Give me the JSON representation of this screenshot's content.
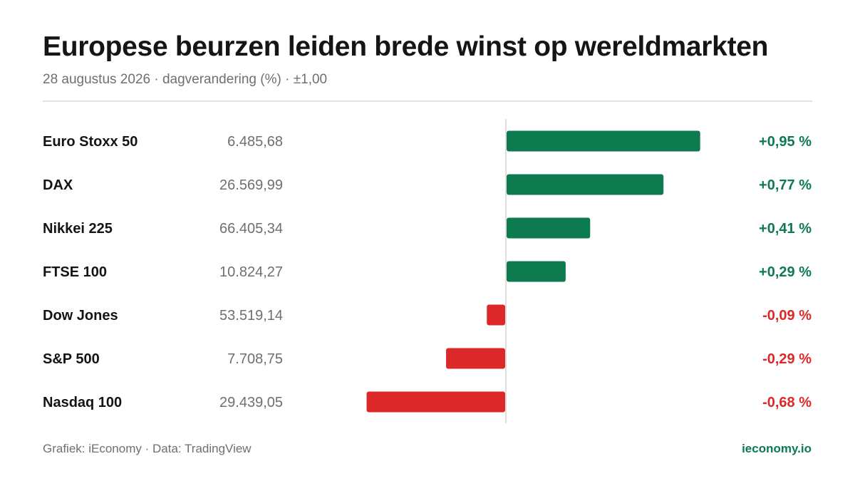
{
  "header": {
    "title": "Europese beurzen leiden brede winst op wereldmarkten",
    "subtitle": "28 augustus 2026 · dagverandering (%) · ±1,00"
  },
  "footer": {
    "credit": "Grafiek: iEconomy · Data: TradingView",
    "site": "ieconomy.io"
  },
  "colors": {
    "positive": "#0d7a50",
    "negative": "#dc2828",
    "axis": "#d4d4d4",
    "label": "#141414",
    "value": "#6f6f6f"
  },
  "chart_data": {
    "type": "bar",
    "orientation": "horizontal",
    "title": "Europese beurzen leiden brede winst op wereldmarkten",
    "subtitle": "28 augustus 2026 · dagverandering (%) · ±1,00",
    "unit": "%",
    "xlim": [
      -1.0,
      1.0
    ],
    "grid": false,
    "categories": [
      "Euro Stoxx 50",
      "DAX",
      "Nikkei 225",
      "FTSE 100",
      "Dow Jones",
      "S&P 500",
      "Nasdaq 100"
    ],
    "levels": [
      "6.485,68",
      "26.569,99",
      "66.405,34",
      "10.824,27",
      "53.519,14",
      "7.708,75",
      "29.439,05"
    ],
    "values": [
      0.95,
      0.77,
      0.41,
      0.29,
      -0.09,
      -0.29,
      -0.68
    ],
    "value_labels": [
      "+0,95 %",
      "+0,77 %",
      "+0,41 %",
      "+0,29 %",
      "-0,09 %",
      "-0,29 %",
      "-0,68 %"
    ]
  }
}
